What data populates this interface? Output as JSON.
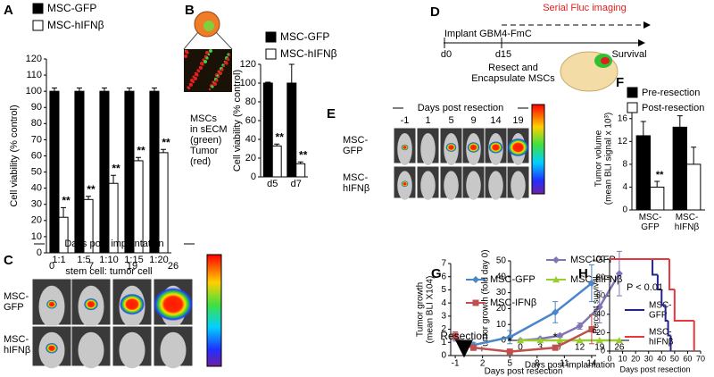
{
  "panel_labels": [
    "A",
    "B",
    "C",
    "D",
    "E",
    "F",
    "G",
    "H"
  ],
  "chart_data": [
    {
      "type": "bar",
      "categories": [
        "1:1",
        "1:5",
        "1:10",
        "1:15",
        "1:20"
      ],
      "series": [
        {
          "name": "MSC-GFP",
          "color": "#000000",
          "values": [
            100,
            100,
            100,
            100,
            100
          ],
          "errors": [
            2,
            2,
            2,
            2,
            2
          ]
        },
        {
          "name": "MSC-hIFNβ",
          "color": "#ffffff",
          "values": [
            22,
            33,
            43,
            57,
            62
          ],
          "errors": [
            6,
            2,
            5,
            2,
            2
          ],
          "annotations": [
            "**",
            "**",
            "**",
            "**",
            "**"
          ]
        }
      ],
      "ylim": [
        0,
        120
      ],
      "yticks": [
        0,
        10,
        20,
        30,
        40,
        50,
        60,
        70,
        80,
        90,
        100,
        110,
        120
      ],
      "xlabel": "stem cell: tumor cell",
      "ylabel": "Cell viability (% control)"
    },
    {
      "type": "bar",
      "categories": [
        "d5",
        "d7"
      ],
      "series": [
        {
          "name": "MSC-GFP",
          "color": "#000000",
          "values": [
            100,
            100
          ],
          "errors": [
            1,
            20
          ]
        },
        {
          "name": "MSC-hIFNβ",
          "color": "#ffffff",
          "values": [
            33,
            14
          ],
          "errors": [
            2,
            2
          ],
          "annotations": [
            "**",
            "**"
          ]
        }
      ],
      "ylim": [
        0,
        120
      ],
      "yticks": [
        0,
        20,
        40,
        60,
        80,
        100,
        120
      ],
      "ylabel": "Cell viability (% control)"
    },
    {
      "type": "line",
      "categories": [
        "0",
        "3",
        "7",
        "12",
        "19",
        "26"
      ],
      "series": [
        {
          "name": "MSC-GFP",
          "color": "#8075b5",
          "marker": "diamond",
          "values": [
            0,
            1,
            3,
            9,
            21,
            42
          ],
          "errors": [
            0,
            0,
            1,
            2,
            10,
            14
          ]
        },
        {
          "name": "MSC-hIFNβ",
          "color": "#9acd32",
          "marker": "triangle",
          "values": [
            0,
            0,
            0,
            0,
            0,
            0
          ]
        }
      ],
      "ylim": [
        0,
        50
      ],
      "yticks": [
        0,
        10,
        20,
        30,
        40,
        50
      ],
      "xlabel": "Days post implantation",
      "ylabel": "Tumor growth (fold day 0)"
    },
    {
      "type": "bar",
      "categories": [
        "MSC-\nGFP",
        "MSC-\nhIFNβ"
      ],
      "series": [
        {
          "name": "Pre-resection",
          "color": "#000000",
          "values": [
            13,
            14.5
          ],
          "errors": [
            2.5,
            2
          ]
        },
        {
          "name": "Post-resection",
          "color": "#ffffff",
          "values": [
            4,
            8
          ],
          "errors": [
            1,
            3
          ],
          "annotations": [
            "**",
            null
          ]
        }
      ],
      "ylim": [
        0,
        18
      ],
      "yticks": [
        0,
        4,
        8,
        12,
        16
      ],
      "ylabel": "Tumor volume\n(mean BLI signal x 10³)"
    },
    {
      "type": "line",
      "x": [
        -1,
        0,
        1,
        5,
        10,
        14
      ],
      "series": [
        {
          "name": "MSC-GFP",
          "color": "#4a86c8",
          "marker": "diamond",
          "values": [
            1.4,
            0.9,
            0.8,
            1.4,
            3.3,
            5.5
          ],
          "errors": [
            0.3,
            0.2,
            0.2,
            0.5,
            0.8,
            1.4
          ]
        },
        {
          "name": "MSC-IFNβ",
          "color": "#c0504d",
          "marker": "square",
          "values": [
            1.5,
            0.8,
            0.6,
            0.3,
            0.6,
            2.0
          ],
          "errors": [
            0.3,
            0.2,
            0.2,
            0.1,
            0.1,
            1.1
          ]
        }
      ],
      "xlim": [
        -1.5,
        14.5
      ],
      "xticks": [
        -1,
        2,
        5,
        8,
        11,
        14
      ],
      "ylim": [
        0,
        7
      ],
      "yticks": [
        0,
        1,
        2,
        3,
        4,
        5,
        6,
        7
      ],
      "annotations": [
        "Resection",
        "*",
        "*"
      ],
      "xlabel": "Days post resection",
      "ylabel": "Tumor growth\n(mean BLI X104)"
    },
    {
      "type": "step",
      "series": [
        {
          "name": "MSC-\nGFP",
          "color": "#23238f",
          "x": [
            0,
            33,
            37,
            40,
            43,
            45,
            47
          ],
          "values": [
            100,
            83,
            67,
            50,
            33,
            17,
            0
          ]
        },
        {
          "name": "MSC-\nhIFNβ",
          "color": "#e8383d",
          "x": [
            0,
            46,
            50,
            57,
            65
          ],
          "values": [
            100,
            67,
            33,
            33,
            0
          ]
        }
      ],
      "xlim": [
        0,
        70
      ],
      "xticks": [
        0,
        10,
        20,
        30,
        40,
        50,
        60,
        70
      ],
      "ylim": [
        0,
        100
      ],
      "yticks": [
        0,
        20,
        40,
        60,
        80,
        100
      ],
      "annotations": [
        "P < 0.01"
      ],
      "xlabel": "Days post resection",
      "ylabel": "Percent survival"
    }
  ],
  "panel_b_image": {
    "caption": "MSCs\nin sECM\n(green)\nTumor\n(red)"
  },
  "panel_c_images": {
    "title": "Days post implantation",
    "columns": [
      "0",
      "7",
      "19",
      "26"
    ],
    "rows": [
      "MSC-\nGFP",
      "MSC-\nhIFNβ"
    ]
  },
  "panel_d_timeline": {
    "implant": "Implant GBM4-FmC",
    "imaging": "Serial Fluc imaging",
    "start": "d0",
    "resection_day": "d15",
    "resection": "Resect and\nEncapsulate MSCs",
    "end": "Survival"
  },
  "panel_e_images": {
    "title": "Days post resection",
    "columns": [
      "-1",
      "1",
      "5",
      "9",
      "14",
      "19"
    ],
    "rows": [
      "MSC-\nGFP",
      "MSC-\nhIFNβ"
    ]
  }
}
